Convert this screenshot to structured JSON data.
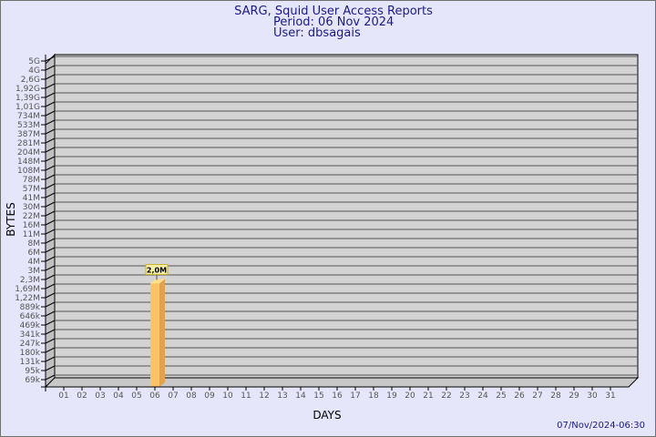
{
  "header": {
    "title": "SARG, Squid User Access Reports",
    "period": "Period: 06 Nov 2024",
    "user": "User: dbsagais"
  },
  "footer": {
    "timestamp": "07/Nov/2024-06:30"
  },
  "colors": {
    "background": "#e6e6fa",
    "plot_wall": "#d3d3d3",
    "bar_front": "#fcc266",
    "bar_side": "#e0a24c",
    "title": "#1a1a8c"
  },
  "chart_data": {
    "type": "bar",
    "xlabel": "DAYS",
    "ylabel": "BYTES",
    "y_scale": "log",
    "grid": true,
    "categories": [
      "01",
      "02",
      "03",
      "04",
      "05",
      "06",
      "07",
      "08",
      "09",
      "10",
      "11",
      "12",
      "13",
      "14",
      "15",
      "16",
      "17",
      "18",
      "19",
      "20",
      "21",
      "22",
      "23",
      "24",
      "25",
      "26",
      "27",
      "28",
      "29",
      "30",
      "31"
    ],
    "y_ticks": [
      "5G",
      "4G",
      "2,6G",
      "1,92G",
      "1,39G",
      "1,01G",
      "734M",
      "533M",
      "387M",
      "281M",
      "204M",
      "148M",
      "108M",
      "78M",
      "57M",
      "41M",
      "30M",
      "22M",
      "16M",
      "11M",
      "8M",
      "6M",
      "4M",
      "3M",
      "2,3M",
      "1,69M",
      "1,22M",
      "889k",
      "646k",
      "469k",
      "341k",
      "247k",
      "180k",
      "131k",
      "95k",
      "69k"
    ],
    "series": [
      {
        "values": [
          null,
          null,
          null,
          null,
          null,
          2000000,
          null,
          null,
          null,
          null,
          null,
          null,
          null,
          null,
          null,
          null,
          null,
          null,
          null,
          null,
          null,
          null,
          null,
          null,
          null,
          null,
          null,
          null,
          null,
          null,
          null
        ],
        "data_labels": {
          "06": "2,0M"
        }
      }
    ]
  }
}
